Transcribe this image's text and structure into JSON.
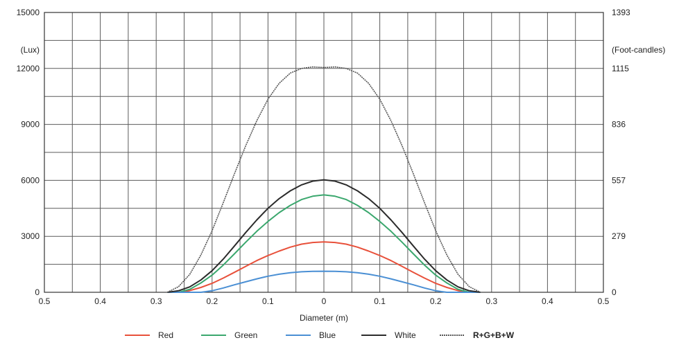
{
  "chart_data": {
    "type": "line",
    "title": "",
    "xlabel": "Diameter (m)",
    "ylabel_left": "(Lux)",
    "ylabel_right": "(Foot-candles)",
    "x_ticks": [
      "0.5",
      "0.4",
      "0.3",
      "0.2",
      "0.1",
      "0",
      "0.1",
      "0.2",
      "0.3",
      "0.4",
      "0.5"
    ],
    "x_tick_values": [
      -0.5,
      -0.4,
      -0.3,
      -0.2,
      -0.1,
      0,
      0.1,
      0.2,
      0.3,
      0.4,
      0.5
    ],
    "xlim": [
      -0.5,
      0.5
    ],
    "ylim": [
      0,
      15000
    ],
    "y_ticks_left": [
      "0",
      "3000",
      "6000",
      "9000",
      "12000",
      "15000"
    ],
    "y_tick_values_left": [
      0,
      3000,
      6000,
      9000,
      12000,
      15000
    ],
    "y_ticks_right": [
      "0",
      "279",
      "557",
      "836",
      "1115",
      "1393"
    ],
    "y_tick_values_right": [
      0,
      3000,
      6000,
      9000,
      12000,
      15000
    ],
    "grid": true,
    "legend_position": "bottom",
    "x": [
      -0.28,
      -0.26,
      -0.24,
      -0.22,
      -0.2,
      -0.18,
      -0.16,
      -0.14,
      -0.12,
      -0.1,
      -0.08,
      -0.06,
      -0.04,
      -0.02,
      0,
      0.02,
      0.04,
      0.06,
      0.08,
      0.1,
      0.12,
      0.14,
      0.16,
      0.18,
      0.2,
      0.22,
      0.24,
      0.26,
      0.28
    ],
    "series": [
      {
        "name": "Red",
        "color": "#e8503a",
        "values": [
          0,
          0,
          90,
          260,
          480,
          760,
          1070,
          1390,
          1700,
          1970,
          2210,
          2420,
          2580,
          2670,
          2700,
          2670,
          2580,
          2420,
          2210,
          1970,
          1700,
          1390,
          1070,
          760,
          480,
          260,
          90,
          0,
          0
        ]
      },
      {
        "name": "Green",
        "color": "#3aa76d",
        "values": [
          0,
          0,
          160,
          500,
          920,
          1460,
          2060,
          2680,
          3270,
          3800,
          4270,
          4660,
          4970,
          5150,
          5220,
          5150,
          4970,
          4660,
          4270,
          3800,
          3270,
          2680,
          2060,
          1460,
          920,
          500,
          160,
          0,
          0
        ]
      },
      {
        "name": "Blue",
        "color": "#4a8fd4",
        "values": [
          0,
          0,
          0,
          0,
          80,
          230,
          400,
          560,
          720,
          860,
          970,
          1050,
          1100,
          1120,
          1130,
          1120,
          1100,
          1050,
          970,
          860,
          720,
          560,
          400,
          230,
          80,
          0,
          0,
          0,
          0
        ]
      },
      {
        "name": "White",
        "color": "#2b2b2b",
        "values": [
          0,
          80,
          290,
          660,
          1160,
          1780,
          2480,
          3200,
          3880,
          4500,
          5020,
          5440,
          5760,
          5960,
          6030,
          5960,
          5760,
          5440,
          5020,
          4500,
          3880,
          3200,
          2480,
          1780,
          1160,
          660,
          290,
          80,
          0
        ]
      },
      {
        "name": "R+G+B+W",
        "color": "#555555",
        "values": [
          0,
          300,
          960,
          2000,
          3300,
          4800,
          6350,
          7850,
          9200,
          10350,
          11200,
          11750,
          12000,
          12080,
          12050,
          12080,
          12000,
          11750,
          11200,
          10350,
          9200,
          7850,
          6350,
          4800,
          3300,
          2000,
          960,
          300,
          0
        ]
      }
    ]
  }
}
